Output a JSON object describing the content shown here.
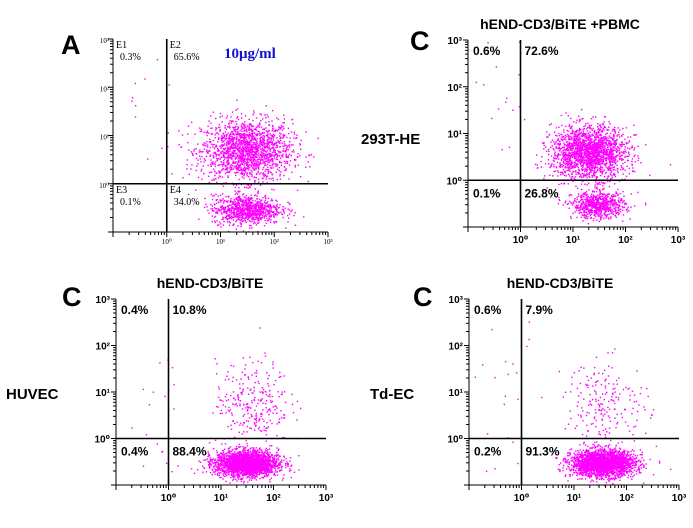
{
  "figure": {
    "row_labels": [
      "293T-HE",
      "HUVEC",
      "Td-EC"
    ],
    "colors": {
      "dot": "#ff00ff",
      "axis": "#000000",
      "label": "#000000",
      "conc": "#1010d0"
    }
  },
  "chart_data": [
    {
      "type": "scatter",
      "panel_letter": "A",
      "title": "",
      "annotation": "10μg/ml",
      "x_axis": {
        "scale": "log",
        "lim": [
          0.1,
          1000
        ],
        "ticks": [
          "10⁰",
          "10¹",
          "10²",
          "10³"
        ]
      },
      "y_axis": {
        "scale": "log",
        "lim": [
          0.1,
          1000
        ],
        "ticks": [
          "10³",
          "10²",
          "10¹",
          "10⁰"
        ]
      },
      "gate": {
        "x": 1,
        "y": 1
      },
      "quadrants": [
        {
          "id": "E1",
          "position": "top-left",
          "percent": "0.3%"
        },
        {
          "id": "E2",
          "position": "top-right",
          "percent": "65.6%"
        },
        {
          "id": "E3",
          "position": "bottom-left",
          "percent": "0.1%"
        },
        {
          "id": "E4",
          "position": "bottom-right",
          "percent": "34.0%"
        }
      ],
      "clusters": [
        {
          "x": 30,
          "y": 5,
          "spread_x": 0.42,
          "spread_y": 0.32,
          "share": 0.656
        },
        {
          "x": 30,
          "y": 0.3,
          "spread_x": 0.32,
          "spread_y": 0.15,
          "share": 0.34
        },
        {
          "x": 0.5,
          "y": 50,
          "spread_x": 0.3,
          "spread_y": 0.6,
          "share": 0.004
        }
      ]
    },
    {
      "type": "scatter",
      "panel_letter": "C",
      "title": "hEND-CD3/BiTE +PBMC",
      "x_axis": {
        "scale": "log",
        "lim": [
          0.1,
          1000
        ],
        "ticks": [
          "10⁰",
          "10¹",
          "10²",
          "10³"
        ]
      },
      "y_axis": {
        "scale": "log",
        "lim": [
          0.1,
          1000
        ],
        "ticks": [
          "10³",
          "10²",
          "10¹",
          "10⁰"
        ]
      },
      "gate": {
        "x": 1,
        "y": 1
      },
      "quadrants": [
        {
          "position": "top-left",
          "percent": "0.6%"
        },
        {
          "position": "top-right",
          "percent": "72.6%"
        },
        {
          "position": "bottom-left",
          "percent": "0.1%"
        },
        {
          "position": "bottom-right",
          "percent": "26.8%"
        }
      ],
      "clusters": [
        {
          "x": 20,
          "y": 4,
          "spread_x": 0.36,
          "spread_y": 0.28,
          "share": 0.726
        },
        {
          "x": 30,
          "y": 0.3,
          "spread_x": 0.25,
          "spread_y": 0.14,
          "share": 0.268
        },
        {
          "x": 0.5,
          "y": 30,
          "spread_x": 0.3,
          "spread_y": 0.6,
          "share": 0.006
        }
      ]
    },
    {
      "type": "scatter",
      "panel_letter": "C",
      "title": "hEND-CD3/BiTE",
      "x_axis": {
        "scale": "log",
        "lim": [
          0.1,
          1000
        ],
        "ticks": [
          "10⁰",
          "10¹",
          "10²",
          "10³"
        ]
      },
      "y_axis": {
        "scale": "log",
        "lim": [
          0.1,
          1000
        ],
        "ticks": [
          "10³",
          "10²",
          "10¹",
          "10⁰"
        ]
      },
      "gate": {
        "x": 1,
        "y": 1
      },
      "quadrants": [
        {
          "position": "top-left",
          "percent": "0.4%"
        },
        {
          "position": "top-right",
          "percent": "10.8%"
        },
        {
          "position": "bottom-left",
          "percent": "0.4%"
        },
        {
          "position": "bottom-right",
          "percent": "88.4%"
        }
      ],
      "clusters": [
        {
          "x": 30,
          "y": 0.3,
          "spread_x": 0.3,
          "spread_y": 0.14,
          "share": 0.884
        },
        {
          "x": 40,
          "y": 6,
          "spread_x": 0.35,
          "spread_y": 0.45,
          "share": 0.108
        },
        {
          "x": 0.5,
          "y": 0.4,
          "spread_x": 0.3,
          "spread_y": 0.2,
          "share": 0.004
        },
        {
          "x": 0.5,
          "y": 20,
          "spread_x": 0.3,
          "spread_y": 0.5,
          "share": 0.004
        }
      ]
    },
    {
      "type": "scatter",
      "panel_letter": "C",
      "title": "hEND-CD3/BiTE",
      "x_axis": {
        "scale": "log",
        "lim": [
          0.1,
          1000
        ],
        "ticks": [
          "10⁰",
          "10¹",
          "10²",
          "10³"
        ]
      },
      "y_axis": {
        "scale": "log",
        "lim": [
          0.1,
          1000
        ],
        "ticks": [
          "10³",
          "10²",
          "10¹",
          "10⁰"
        ]
      },
      "gate": {
        "x": 1,
        "y": 1
      },
      "quadrants": [
        {
          "position": "top-left",
          "percent": "0.6%"
        },
        {
          "position": "top-right",
          "percent": "7.9%"
        },
        {
          "position": "bottom-left",
          "percent": "0.2%"
        },
        {
          "position": "bottom-right",
          "percent": "91.3%"
        }
      ],
      "clusters": [
        {
          "x": 35,
          "y": 0.3,
          "spread_x": 0.3,
          "spread_y": 0.14,
          "share": 0.913
        },
        {
          "x": 40,
          "y": 6,
          "spread_x": 0.4,
          "spread_y": 0.45,
          "share": 0.079
        },
        {
          "x": 0.5,
          "y": 0.4,
          "spread_x": 0.3,
          "spread_y": 0.2,
          "share": 0.002
        },
        {
          "x": 0.5,
          "y": 20,
          "spread_x": 0.3,
          "spread_y": 0.5,
          "share": 0.006
        }
      ]
    }
  ]
}
